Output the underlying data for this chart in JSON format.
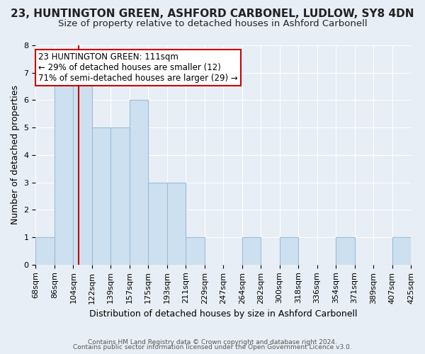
{
  "title": "23, HUNTINGTON GREEN, ASHFORD CARBONEL, LUDLOW, SY8 4DN",
  "subtitle": "Size of property relative to detached houses in Ashford Carbonell",
  "xlabel": "Distribution of detached houses by size in Ashford Carbonell",
  "ylabel": "Number of detached properties",
  "footer_lines": [
    "Contains HM Land Registry data © Crown copyright and database right 2024.",
    "Contains public sector information licensed under the Open Government Licence v3.0."
  ],
  "bins": [
    "68sqm",
    "86sqm",
    "104sqm",
    "122sqm",
    "139sqm",
    "157sqm",
    "175sqm",
    "193sqm",
    "211sqm",
    "229sqm",
    "247sqm",
    "264sqm",
    "282sqm",
    "300sqm",
    "318sqm",
    "336sqm",
    "354sqm",
    "371sqm",
    "389sqm",
    "407sqm",
    "425sqm"
  ],
  "bar_heights": [
    1,
    7,
    7,
    5,
    5,
    6,
    3,
    3,
    1,
    0,
    0,
    1,
    0,
    1,
    0,
    0,
    1,
    0,
    0,
    1
  ],
  "bar_color": "#cde0f0",
  "bar_edge_color": "#9bbdd8",
  "property_line_bin_index": 2.3,
  "annotation_text": "23 HUNTINGTON GREEN: 111sqm\n← 29% of detached houses are smaller (12)\n71% of semi-detached houses are larger (29) →",
  "annotation_box_color": "#ffffff",
  "annotation_box_edge_color": "#cc0000",
  "ylim": [
    0,
    8
  ],
  "yticks": [
    0,
    1,
    2,
    3,
    4,
    5,
    6,
    7,
    8
  ],
  "background_color": "#e8eef5",
  "plot_background_color": "#e8eef5",
  "grid_color": "#ffffff",
  "title_fontsize": 11,
  "subtitle_fontsize": 9.5,
  "annotation_fontsize": 8.5,
  "axis_label_fontsize": 9,
  "tick_fontsize": 8
}
